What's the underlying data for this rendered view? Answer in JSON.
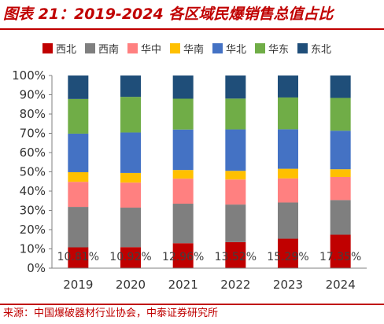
{
  "title": "图表 21：2019-2024 各区域民爆销售总值占比",
  "source": "来源：中国爆破器材行业协会，中泰证券研究所",
  "chart_data": {
    "type": "bar",
    "stacked": true,
    "categories": [
      "2019",
      "2020",
      "2021",
      "2022",
      "2023",
      "2024"
    ],
    "ylim": [
      0,
      100
    ],
    "yticks": [
      "0%",
      "10%",
      "20%",
      "30%",
      "40%",
      "50%",
      "60%",
      "70%",
      "80%",
      "90%",
      "100%"
    ],
    "legend_position": "top",
    "series": [
      {
        "name": "西北",
        "color": "#c00000",
        "values": [
          10.81,
          10.92,
          12.96,
          13.52,
          15.29,
          17.35
        ]
      },
      {
        "name": "西南",
        "color": "#7f7f7f",
        "values": [
          21.0,
          20.5,
          20.5,
          19.5,
          18.8,
          18.0
        ]
      },
      {
        "name": "华中",
        "color": "#ff8080",
        "values": [
          13.0,
          13.0,
          13.0,
          13.0,
          12.5,
          12.0
        ]
      },
      {
        "name": "华南",
        "color": "#ffc000",
        "values": [
          5.0,
          5.0,
          4.5,
          4.5,
          5.0,
          4.0
        ]
      },
      {
        "name": "华北",
        "color": "#4472c4",
        "values": [
          20.0,
          21.0,
          21.0,
          21.5,
          20.5,
          20.0
        ]
      },
      {
        "name": "华东",
        "color": "#70ad47",
        "values": [
          18.0,
          18.5,
          16.0,
          16.0,
          16.5,
          17.0
        ]
      },
      {
        "name": "东北",
        "color": "#1f4e79",
        "values": [
          12.19,
          11.08,
          12.04,
          11.98,
          11.41,
          11.65
        ]
      }
    ],
    "data_labels": [
      "10.81%",
      "10.92%",
      "12.96%",
      "13.52%",
      "15.29%",
      "17.35%"
    ]
  }
}
